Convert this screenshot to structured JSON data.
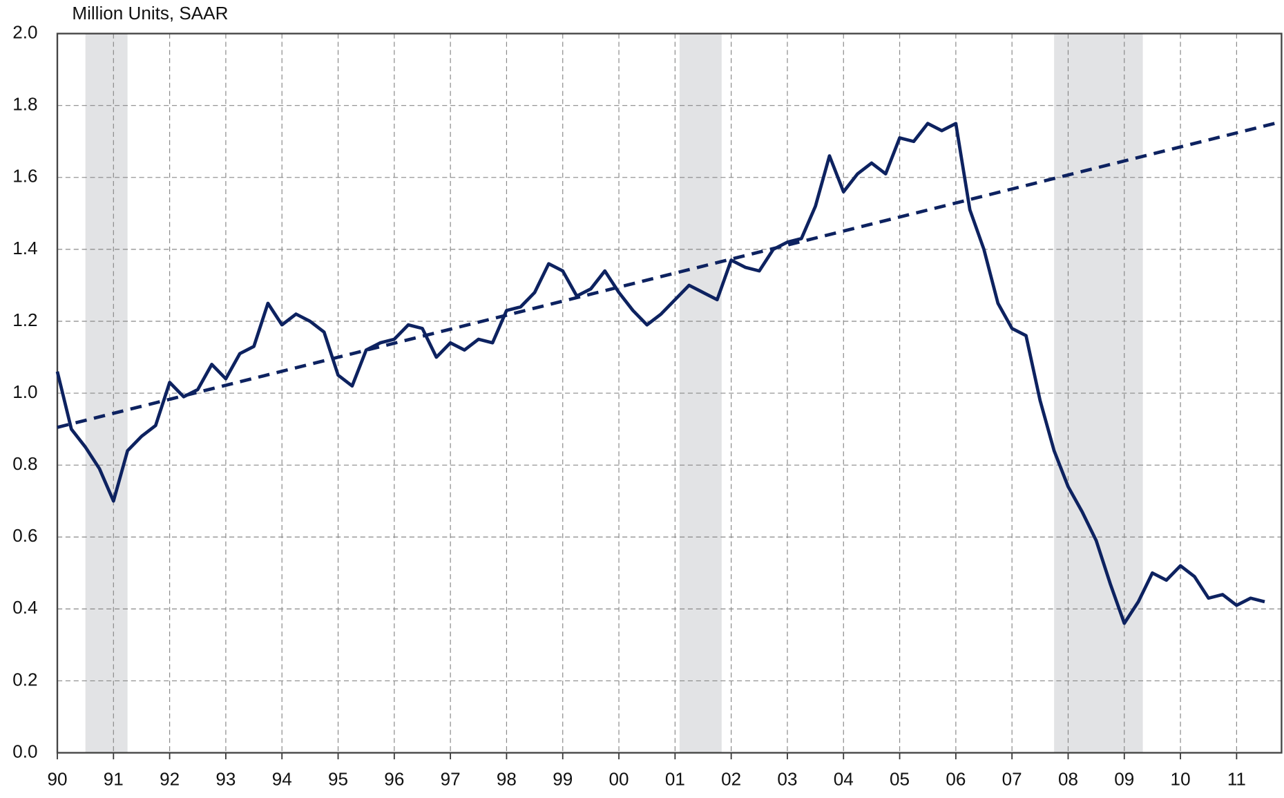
{
  "chart_data": {
    "type": "line",
    "subtitle": "Million Units, SAAR",
    "xlim": [
      1990,
      2011.8
    ],
    "ylim": [
      0,
      2
    ],
    "xticks": [
      {
        "value": 1990,
        "label": "90"
      },
      {
        "value": 1991,
        "label": "91"
      },
      {
        "value": 1992,
        "label": "92"
      },
      {
        "value": 1993,
        "label": "93"
      },
      {
        "value": 1994,
        "label": "94"
      },
      {
        "value": 1995,
        "label": "95"
      },
      {
        "value": 1996,
        "label": "96"
      },
      {
        "value": 1997,
        "label": "97"
      },
      {
        "value": 1998,
        "label": "98"
      },
      {
        "value": 1999,
        "label": "99"
      },
      {
        "value": 2000,
        "label": "00"
      },
      {
        "value": 2001,
        "label": "01"
      },
      {
        "value": 2002,
        "label": "02"
      },
      {
        "value": 2003,
        "label": "03"
      },
      {
        "value": 2004,
        "label": "04"
      },
      {
        "value": 2005,
        "label": "05"
      },
      {
        "value": 2006,
        "label": "06"
      },
      {
        "value": 2007,
        "label": "07"
      },
      {
        "value": 2008,
        "label": "08"
      },
      {
        "value": 2009,
        "label": "09"
      },
      {
        "value": 2010,
        "label": "10"
      },
      {
        "value": 2011,
        "label": "11"
      }
    ],
    "yticks": [
      {
        "value": 0,
        "label": "0.0"
      },
      0.2,
      0.4,
      0.6,
      0.8,
      {
        "value": 1,
        "label": "1.0"
      },
      1.2,
      1.4,
      1.6,
      1.8,
      {
        "value": 2,
        "label": "2.0"
      }
    ],
    "grid": true,
    "shaded_ranges": [
      [
        1990.5,
        1991.25
      ],
      [
        2001.08,
        2001.83
      ],
      [
        2007.75,
        2009.33
      ]
    ],
    "shade_color": "#e2e3e5",
    "series": [
      {
        "color": "#0d2260",
        "style": "solid",
        "x": [
          1990,
          1990.25,
          1990.5,
          1990.75,
          1991,
          1991.25,
          1991.5,
          1991.75,
          1992,
          1992.25,
          1992.5,
          1992.75,
          1993,
          1993.25,
          1993.5,
          1993.75,
          1994,
          1994.25,
          1994.5,
          1994.75,
          1995,
          1995.25,
          1995.5,
          1995.75,
          1996,
          1996.25,
          1996.5,
          1996.75,
          1997,
          1997.25,
          1997.5,
          1997.75,
          1998,
          1998.25,
          1998.5,
          1998.75,
          1999,
          1999.25,
          1999.5,
          1999.75,
          2000,
          2000.25,
          2000.5,
          2000.75,
          2001,
          2001.25,
          2001.5,
          2001.75,
          2002,
          2002.25,
          2002.5,
          2002.75,
          2003,
          2003.25,
          2003.5,
          2003.75,
          2004,
          2004.25,
          2004.5,
          2004.75,
          2005,
          2005.25,
          2005.5,
          2005.75,
          2006,
          2006.25,
          2006.5,
          2006.75,
          2007,
          2007.25,
          2007.5,
          2007.75,
          2008,
          2008.25,
          2008.5,
          2008.75,
          2009,
          2009.25,
          2009.5,
          2009.75,
          2010,
          2010.25,
          2010.5,
          2010.75,
          2011,
          2011.25,
          2011.5
        ],
        "values": [
          1.06,
          0.9,
          0.85,
          0.79,
          0.7,
          0.84,
          0.88,
          0.91,
          1.03,
          0.99,
          1.01,
          1.08,
          1.04,
          1.11,
          1.13,
          1.25,
          1.19,
          1.22,
          1.2,
          1.17,
          1.05,
          1.02,
          1.12,
          1.14,
          1.15,
          1.19,
          1.18,
          1.1,
          1.14,
          1.12,
          1.15,
          1.14,
          1.23,
          1.24,
          1.28,
          1.36,
          1.34,
          1.27,
          1.29,
          1.34,
          1.28,
          1.23,
          1.19,
          1.22,
          1.26,
          1.3,
          1.28,
          1.26,
          1.37,
          1.35,
          1.34,
          1.4,
          1.42,
          1.43,
          1.52,
          1.66,
          1.56,
          1.61,
          1.64,
          1.61,
          1.71,
          1.7,
          1.75,
          1.73,
          1.75,
          1.51,
          1.4,
          1.25,
          1.18,
          1.16,
          0.98,
          0.84,
          0.74,
          0.67,
          0.59,
          0.47,
          0.36,
          0.42,
          0.5,
          0.48,
          0.52,
          0.49,
          0.43,
          0.44,
          0.41,
          0.43,
          0.42
        ]
      },
      {
        "color": "#0d2260",
        "style": "dashed",
        "x": [
          1990,
          2011.8
        ],
        "values": [
          0.905,
          1.755
        ]
      }
    ]
  }
}
